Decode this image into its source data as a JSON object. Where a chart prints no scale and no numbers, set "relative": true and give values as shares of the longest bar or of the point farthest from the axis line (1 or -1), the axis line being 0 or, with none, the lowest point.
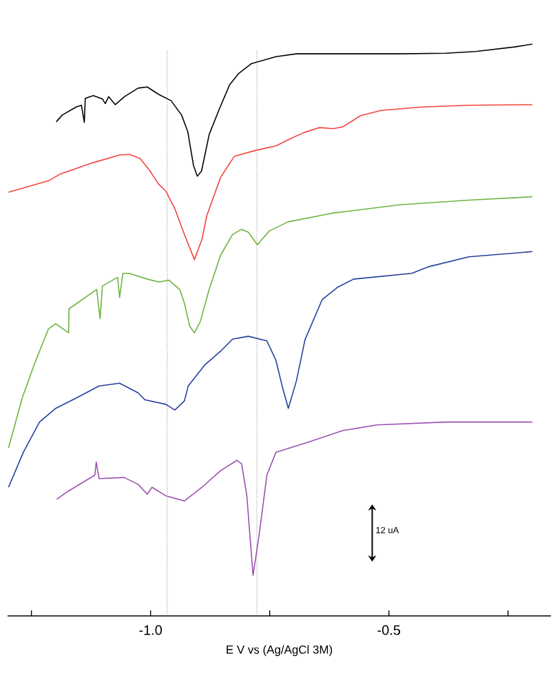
{
  "chart_data": {
    "type": "line",
    "relative": true,
    "xlabel": "E V vs (Ag/AgCl 3M)",
    "xlim": [
      -1.3,
      -0.16
    ],
    "xticks": [
      {
        "value": -1.25,
        "label": null
      },
      {
        "value": -1.0,
        "label": "-1.0"
      },
      {
        "value": -0.75,
        "label": null
      },
      {
        "value": -0.5,
        "label": "-0.5"
      },
      {
        "value": -0.25,
        "label": null
      }
    ],
    "marker": "none",
    "line_style": "solid",
    "annotations": [
      "12 uA"
    ],
    "ref_lines": [
      {
        "axis": "x",
        "value": -0.965,
        "label": null,
        "color": "#333333",
        "line_style": "dotted"
      },
      {
        "axis": "x",
        "value": -0.777,
        "label": null,
        "color": "#333333",
        "line_style": "dotted"
      }
    ],
    "series": [
      {
        "color": "#000000",
        "x": [
          -1.198,
          -1.185,
          -1.156,
          -1.145,
          -1.139,
          -1.137,
          -1.12,
          -1.101,
          -1.095,
          -1.088,
          -1.074,
          -1.055,
          -1.026,
          -1.007,
          -0.983,
          -0.957,
          -0.935,
          -0.922,
          -0.91,
          -0.902,
          -0.893,
          -0.877,
          -0.855,
          -0.834,
          -0.816,
          -0.788,
          -0.766,
          -0.737,
          -0.694,
          -0.621,
          -0.477,
          -0.38,
          -0.318,
          -0.236,
          -0.199
        ],
        "values": [
          0.864,
          0.876,
          0.89,
          0.893,
          0.863,
          0.905,
          0.91,
          0.904,
          0.896,
          0.908,
          0.894,
          0.908,
          0.923,
          0.925,
          0.912,
          0.901,
          0.876,
          0.847,
          0.788,
          0.769,
          0.778,
          0.842,
          0.888,
          0.929,
          0.948,
          0.966,
          0.971,
          0.978,
          0.983,
          0.983,
          0.983,
          0.984,
          0.987,
          0.995,
          1.0
        ]
      },
      {
        "color": "#f4433a",
        "x": [
          -1.298,
          -1.214,
          -1.189,
          -1.123,
          -1.065,
          -1.043,
          -1.022,
          -1.001,
          -0.983,
          -0.968,
          -0.949,
          -0.929,
          -0.908,
          -0.892,
          -0.882,
          -0.853,
          -0.824,
          -0.78,
          -0.737,
          -0.708,
          -0.679,
          -0.646,
          -0.617,
          -0.597,
          -0.559,
          -0.516,
          -0.429,
          -0.332,
          -0.199
        ],
        "values": [
          0.741,
          0.761,
          0.773,
          0.792,
          0.806,
          0.807,
          0.8,
          0.778,
          0.755,
          0.743,
          0.712,
          0.667,
          0.623,
          0.659,
          0.7,
          0.767,
          0.804,
          0.814,
          0.822,
          0.834,
          0.845,
          0.854,
          0.852,
          0.855,
          0.875,
          0.884,
          0.89,
          0.893,
          0.894
        ]
      },
      {
        "color": "#6db33f",
        "x": [
          -1.298,
          -1.269,
          -1.243,
          -1.214,
          -1.199,
          -1.172,
          -1.171,
          -1.113,
          -1.106,
          -1.101,
          -1.069,
          -1.065,
          -1.058,
          -1.045,
          -1.007,
          -0.983,
          -0.961,
          -0.939,
          -0.929,
          -0.918,
          -0.908,
          -0.896,
          -0.877,
          -0.853,
          -0.828,
          -0.809,
          -0.795,
          -0.776,
          -0.751,
          -0.712,
          -0.621,
          -0.477,
          -0.332,
          -0.199
        ],
        "values": [
          0.294,
          0.382,
          0.442,
          0.502,
          0.511,
          0.495,
          0.537,
          0.571,
          0.52,
          0.577,
          0.592,
          0.557,
          0.599,
          0.599,
          0.589,
          0.584,
          0.587,
          0.571,
          0.547,
          0.507,
          0.495,
          0.514,
          0.571,
          0.631,
          0.667,
          0.676,
          0.671,
          0.649,
          0.673,
          0.689,
          0.704,
          0.719,
          0.727,
          0.733
        ]
      },
      {
        "color": "#223f9a",
        "x": [
          -1.298,
          -1.267,
          -1.233,
          -1.199,
          -1.156,
          -1.108,
          -1.065,
          -1.026,
          -1.012,
          -0.968,
          -0.949,
          -0.929,
          -0.921,
          -0.886,
          -0.853,
          -0.828,
          -0.795,
          -0.756,
          -0.737,
          -0.723,
          -0.711,
          -0.694,
          -0.676,
          -0.64,
          -0.607,
          -0.574,
          -0.452,
          -0.415,
          -0.332,
          -0.199
        ],
        "values": [
          0.225,
          0.286,
          0.339,
          0.363,
          0.381,
          0.402,
          0.407,
          0.39,
          0.378,
          0.37,
          0.36,
          0.376,
          0.402,
          0.439,
          0.463,
          0.484,
          0.489,
          0.481,
          0.447,
          0.399,
          0.363,
          0.411,
          0.483,
          0.553,
          0.575,
          0.589,
          0.599,
          0.611,
          0.628,
          0.637
        ]
      },
      {
        "color": "#9b4fb0",
        "x": [
          -1.197,
          -1.171,
          -1.117,
          -1.114,
          -1.108,
          -1.055,
          -1.026,
          -1.007,
          -0.997,
          -0.968,
          -0.929,
          -0.892,
          -0.853,
          -0.819,
          -0.809,
          -0.798,
          -0.785,
          -0.773,
          -0.756,
          -0.737,
          -0.669,
          -0.597,
          -0.525,
          -0.38,
          -0.199
        ],
        "values": [
          0.204,
          0.219,
          0.246,
          0.269,
          0.24,
          0.242,
          0.23,
          0.213,
          0.225,
          0.21,
          0.201,
          0.225,
          0.254,
          0.272,
          0.266,
          0.21,
          0.071,
          0.137,
          0.246,
          0.286,
          0.304,
          0.324,
          0.334,
          0.339,
          0.339
        ]
      }
    ]
  }
}
